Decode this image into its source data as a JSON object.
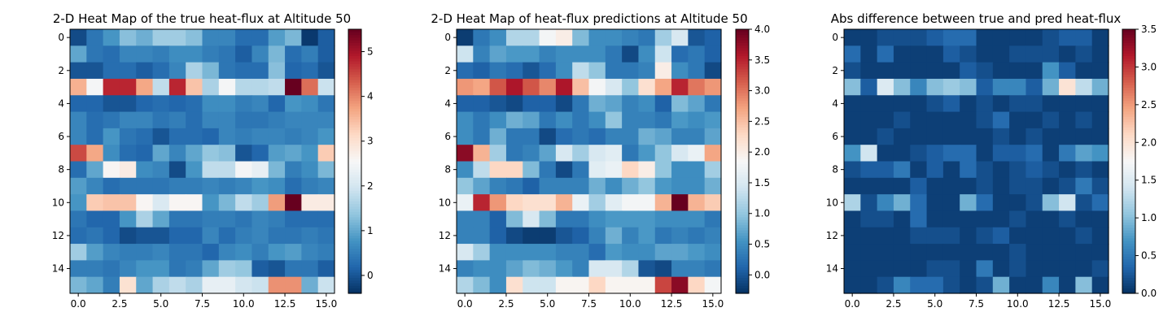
{
  "chart_data": [
    {
      "type": "heatmap",
      "title": "2-D Heat Map of the true heat-flux at Altitude 50",
      "xlabel": "",
      "ylabel": "",
      "x_ticks": [
        0,
        2.5,
        5,
        7.5,
        10,
        12.5,
        15
      ],
      "x_tick_labels": [
        "0.0",
        "2.5",
        "5.0",
        "7.5",
        "10.0",
        "12.5",
        "15.0"
      ],
      "y_ticks": [
        0,
        2,
        4,
        6,
        8,
        10,
        12,
        14
      ],
      "y_tick_labels": [
        "0",
        "2",
        "4",
        "6",
        "8",
        "10",
        "12",
        "14"
      ],
      "colormap": "RdBu_r",
      "vmin": -0.4,
      "vmax": 5.5,
      "colorbar_ticks": [
        0,
        1,
        2,
        3,
        4,
        5
      ],
      "colorbar_tick_labels": [
        "0",
        "1",
        "2",
        "3",
        "4",
        "5"
      ],
      "z": [
        [
          -0.1,
          0.4,
          0.8,
          1.3,
          1.1,
          1.5,
          1.5,
          1.3,
          0.6,
          0.6,
          0.3,
          0.3,
          0.9,
          1.2,
          -0.3,
          0.1
        ],
        [
          1.0,
          0.4,
          0.3,
          0.6,
          0.6,
          0.5,
          0.7,
          0.7,
          0.5,
          0.4,
          0.1,
          0.6,
          1.2,
          0.3,
          0.5,
          0.1
        ],
        [
          0.0,
          0.0,
          0.3,
          0.3,
          0.1,
          0.3,
          0.6,
          1.6,
          1.2,
          0.4,
          0.3,
          0.3,
          1.3,
          0.2,
          0.3,
          0.0
        ],
        [
          3.6,
          2.5,
          4.8,
          4.8,
          3.7,
          1.8,
          4.8,
          3.4,
          1.6,
          2.5,
          1.7,
          1.7,
          1.8,
          5.5,
          4.2,
          1.9
        ],
        [
          0.2,
          0.2,
          0.0,
          0.0,
          0.2,
          0.3,
          0.2,
          0.3,
          0.7,
          0.7,
          0.5,
          0.6,
          0.2,
          0.8,
          0.7,
          0.4
        ],
        [
          0.6,
          0.3,
          0.4,
          0.6,
          0.6,
          0.4,
          0.5,
          0.3,
          0.6,
          0.6,
          0.4,
          0.4,
          0.5,
          0.6,
          0.6,
          0.6
        ],
        [
          0.6,
          0.3,
          0.8,
          0.4,
          0.3,
          0.0,
          0.3,
          0.3,
          0.2,
          0.6,
          0.5,
          0.6,
          0.6,
          0.5,
          0.6,
          0.8
        ],
        [
          4.5,
          3.7,
          0.7,
          0.3,
          0.2,
          1.0,
          0.6,
          1.0,
          1.4,
          1.3,
          0.0,
          0.2,
          0.9,
          1.0,
          0.8,
          3.3
        ],
        [
          0.3,
          1.0,
          2.6,
          2.8,
          0.7,
          0.6,
          -0.1,
          0.8,
          1.8,
          1.8,
          2.5,
          2.3,
          1.2,
          0.5,
          0.7,
          1.2
        ],
        [
          0.9,
          0.6,
          0.3,
          0.4,
          0.4,
          0.4,
          0.5,
          0.5,
          0.6,
          0.5,
          0.6,
          0.8,
          0.7,
          0.3,
          0.5,
          0.6
        ],
        [
          0.8,
          3.3,
          3.4,
          3.4,
          2.6,
          2.1,
          2.6,
          2.6,
          0.8,
          1.2,
          1.8,
          1.5,
          3.8,
          5.5,
          2.8,
          2.8
        ],
        [
          0.4,
          0.2,
          0.2,
          0.8,
          1.6,
          1.0,
          0.4,
          0.4,
          0.5,
          0.5,
          0.4,
          0.6,
          0.5,
          0.3,
          0.3,
          0.3
        ],
        [
          0.3,
          0.4,
          0.2,
          -0.1,
          0.0,
          0.0,
          0.2,
          0.2,
          0.6,
          0.3,
          0.5,
          0.6,
          0.4,
          0.4,
          0.5,
          0.4
        ],
        [
          1.5,
          0.9,
          0.6,
          0.5,
          0.5,
          0.6,
          0.4,
          0.4,
          0.2,
          0.6,
          0.7,
          0.5,
          0.8,
          0.9,
          0.6,
          0.5
        ],
        [
          0.5,
          0.5,
          0.4,
          0.6,
          0.8,
          0.8,
          0.4,
          0.5,
          1.0,
          1.5,
          1.4,
          0.1,
          0.0,
          0.4,
          0.4,
          0.1
        ],
        [
          1.2,
          1.0,
          0.5,
          3.0,
          1.0,
          1.6,
          1.8,
          1.6,
          2.3,
          2.3,
          2.0,
          1.9,
          3.9,
          3.9,
          1.1,
          1.9
        ]
      ]
    },
    {
      "type": "heatmap",
      "title": "2-D Heat Map of heat-flux predictions at Altitude 50",
      "xlabel": "",
      "ylabel": "",
      "x_ticks": [
        0,
        2.5,
        5,
        7.5,
        10,
        12.5,
        15
      ],
      "x_tick_labels": [
        "0.0",
        "2.5",
        "5.0",
        "7.5",
        "10.0",
        "12.5",
        "15.0"
      ],
      "y_ticks": [
        0,
        2,
        4,
        6,
        8,
        10,
        12,
        14
      ],
      "y_tick_labels": [
        "0",
        "2",
        "4",
        "6",
        "8",
        "10",
        "12",
        "14"
      ],
      "colormap": "RdBu_r",
      "vmin": -0.3,
      "vmax": 4.0,
      "colorbar_ticks": [
        0,
        0.5,
        1,
        1.5,
        2,
        2.5,
        3,
        3.5,
        4
      ],
      "colorbar_tick_labels": [
        "0.0",
        "0.5",
        "1.0",
        "1.5",
        "2.0",
        "2.5",
        "3.0",
        "3.5",
        "4.0"
      ],
      "z": [
        [
          -0.2,
          0.3,
          0.5,
          1.2,
          1.2,
          1.8,
          2.0,
          0.9,
          0.5,
          0.5,
          0.4,
          0.3,
          1.1,
          1.5,
          0.0,
          0.1
        ],
        [
          1.4,
          0.4,
          0.7,
          0.6,
          0.6,
          0.4,
          0.5,
          0.5,
          0.5,
          0.3,
          -0.1,
          0.5,
          1.4,
          0.2,
          0.3,
          0.1
        ],
        [
          0.2,
          0.1,
          0.3,
          0.2,
          0.0,
          0.2,
          0.5,
          1.3,
          1.0,
          0.3,
          0.3,
          0.4,
          2.0,
          0.5,
          0.3,
          -0.1
        ],
        [
          2.8,
          2.7,
          3.2,
          3.6,
          3.2,
          2.9,
          3.6,
          2.5,
          1.8,
          1.5,
          1.0,
          2.2,
          2.7,
          3.5,
          3.0,
          2.8
        ],
        [
          0.1,
          0.1,
          0.0,
          -0.1,
          0.1,
          0.1,
          -0.1,
          0.3,
          0.8,
          0.7,
          0.4,
          0.5,
          0.1,
          0.9,
          0.7,
          0.3
        ],
        [
          0.5,
          0.3,
          0.5,
          0.8,
          0.7,
          0.3,
          0.5,
          0.3,
          0.5,
          1.0,
          0.4,
          0.4,
          0.3,
          0.6,
          0.5,
          0.6
        ],
        [
          0.5,
          0.3,
          0.8,
          0.3,
          0.3,
          -0.1,
          0.2,
          0.3,
          0.2,
          0.4,
          0.4,
          0.8,
          0.7,
          0.4,
          0.4,
          0.7
        ],
        [
          3.8,
          2.6,
          1.1,
          0.3,
          0.4,
          0.7,
          1.5,
          1.1,
          1.5,
          1.6,
          0.3,
          0.6,
          1.0,
          1.5,
          1.7,
          2.7
        ],
        [
          0.5,
          1.3,
          2.3,
          2.3,
          0.9,
          0.3,
          -0.1,
          0.3,
          1.6,
          1.7,
          2.3,
          2.0,
          1.0,
          0.5,
          0.5,
          1.1
        ],
        [
          1.0,
          0.7,
          0.4,
          0.3,
          0.1,
          0.4,
          0.4,
          0.4,
          0.8,
          0.5,
          0.8,
          1.0,
          0.6,
          0.5,
          0.5,
          0.8
        ],
        [
          1.7,
          3.5,
          2.8,
          2.3,
          2.2,
          2.2,
          2.6,
          1.7,
          1.1,
          1.6,
          1.8,
          1.8,
          2.6,
          4.0,
          2.6,
          2.4
        ],
        [
          0.4,
          0.4,
          0.1,
          0.9,
          1.5,
          0.9,
          0.3,
          0.3,
          0.5,
          0.6,
          0.6,
          0.6,
          0.5,
          0.5,
          0.5,
          0.3
        ],
        [
          0.4,
          0.4,
          0.1,
          -0.1,
          -0.2,
          -0.2,
          0.0,
          0.1,
          0.4,
          0.8,
          0.4,
          0.6,
          0.3,
          0.4,
          0.3,
          0.4
        ],
        [
          1.5,
          1.1,
          0.5,
          0.5,
          0.5,
          0.5,
          0.4,
          0.4,
          0.2,
          0.6,
          0.5,
          0.5,
          0.7,
          0.7,
          0.6,
          0.5
        ],
        [
          0.4,
          0.5,
          0.5,
          0.7,
          0.9,
          0.8,
          0.6,
          0.4,
          1.5,
          1.5,
          1.2,
          0.0,
          -0.1,
          0.4,
          0.4,
          0.3
        ],
        [
          1.2,
          0.9,
          0.5,
          2.2,
          1.4,
          1.4,
          1.9,
          1.9,
          2.3,
          1.9,
          1.9,
          1.9,
          3.3,
          3.8,
          2.3,
          1.8
        ]
      ]
    },
    {
      "type": "heatmap",
      "title": "Abs difference between true and pred heat-flux",
      "xlabel": "",
      "ylabel": "",
      "x_ticks": [
        0,
        2.5,
        5,
        7.5,
        10,
        12.5,
        15
      ],
      "x_tick_labels": [
        "0.0",
        "2.5",
        "5.0",
        "7.5",
        "10.0",
        "12.5",
        "15.0"
      ],
      "y_ticks": [
        0,
        2,
        4,
        6,
        8,
        10,
        12,
        14
      ],
      "y_tick_labels": [
        "0",
        "2",
        "4",
        "6",
        "8",
        "10",
        "12",
        "14"
      ],
      "colormap": "RdBu_r",
      "vmin": 0,
      "vmax": 3.5,
      "colorbar_ticks": [
        0,
        0.5,
        1,
        1.5,
        2,
        2.5,
        3,
        3.5
      ],
      "colorbar_tick_labels": [
        "0.0",
        "0.5",
        "1.0",
        "1.5",
        "2.0",
        "2.5",
        "3.0",
        "3.5"
      ],
      "z": [
        [
          0.1,
          0.1,
          0.2,
          0.2,
          0.2,
          0.3,
          0.4,
          0.4,
          0.1,
          0.1,
          0.1,
          0.1,
          0.2,
          0.3,
          0.3,
          0.1
        ],
        [
          0.4,
          0.1,
          0.4,
          0.1,
          0.1,
          0.1,
          0.3,
          0.2,
          0.1,
          0.1,
          0.2,
          0.2,
          0.2,
          0.1,
          0.2,
          0.1
        ],
        [
          0.2,
          0.1,
          0.1,
          0.1,
          0.1,
          0.1,
          0.1,
          0.3,
          0.2,
          0.1,
          0.1,
          0.1,
          0.7,
          0.3,
          0.1,
          0.1
        ],
        [
          1.0,
          0.3,
          1.5,
          1.0,
          0.6,
          1.0,
          1.1,
          1.0,
          0.3,
          0.6,
          0.6,
          0.3,
          0.9,
          2.0,
          1.3,
          0.9
        ],
        [
          0.1,
          0.1,
          0.1,
          0.1,
          0.1,
          0.2,
          0.3,
          0.1,
          0.2,
          0.1,
          0.2,
          0.2,
          0.1,
          0.1,
          0.1,
          0.1
        ],
        [
          0.1,
          0.1,
          0.1,
          0.2,
          0.1,
          0.1,
          0.1,
          0.1,
          0.2,
          0.4,
          0.1,
          0.1,
          0.2,
          0.1,
          0.2,
          0.1
        ],
        [
          0.1,
          0.1,
          0.2,
          0.1,
          0.1,
          0.1,
          0.1,
          0.1,
          0.1,
          0.2,
          0.1,
          0.2,
          0.1,
          0.1,
          0.1,
          0.1
        ],
        [
          0.7,
          1.4,
          0.1,
          0.1,
          0.2,
          0.3,
          0.4,
          0.4,
          0.1,
          0.3,
          0.3,
          0.4,
          0.1,
          0.5,
          0.8,
          0.7
        ],
        [
          0.2,
          0.3,
          0.3,
          0.5,
          0.1,
          0.3,
          0.1,
          0.4,
          0.2,
          0.1,
          0.2,
          0.3,
          0.2,
          0.1,
          0.2,
          0.1
        ],
        [
          0.1,
          0.1,
          0.1,
          0.1,
          0.3,
          0.1,
          0.1,
          0.1,
          0.2,
          0.1,
          0.2,
          0.2,
          0.1,
          0.2,
          0.5,
          0.2
        ],
        [
          1.2,
          0.2,
          0.6,
          0.9,
          0.4,
          0.1,
          0.1,
          0.9,
          0.4,
          0.1,
          0.1,
          0.2,
          1.0,
          1.4,
          0.2,
          0.4
        ],
        [
          0.1,
          0.2,
          0.2,
          0.1,
          0.4,
          0.1,
          0.1,
          0.1,
          0.1,
          0.1,
          0.2,
          0.1,
          0.1,
          0.2,
          0.1,
          0.1
        ],
        [
          0.1,
          0.1,
          0.1,
          0.1,
          0.2,
          0.2,
          0.2,
          0.1,
          0.2,
          0.3,
          0.1,
          0.1,
          0.1,
          0.1,
          0.2,
          0.1
        ],
        [
          0.1,
          0.1,
          0.1,
          0.1,
          0.1,
          0.1,
          0.1,
          0.1,
          0.1,
          0.1,
          0.2,
          0.1,
          0.1,
          0.1,
          0.1,
          0.1
        ],
        [
          0.1,
          0.1,
          0.1,
          0.1,
          0.1,
          0.2,
          0.2,
          0.1,
          0.5,
          0.1,
          0.2,
          0.1,
          0.1,
          0.1,
          0.1,
          0.2
        ],
        [
          0.1,
          0.1,
          0.2,
          0.6,
          0.4,
          0.4,
          0.2,
          0.1,
          0.2,
          0.9,
          0.1,
          0.1,
          0.6,
          0.1,
          1.0,
          0.1
        ]
      ]
    }
  ]
}
